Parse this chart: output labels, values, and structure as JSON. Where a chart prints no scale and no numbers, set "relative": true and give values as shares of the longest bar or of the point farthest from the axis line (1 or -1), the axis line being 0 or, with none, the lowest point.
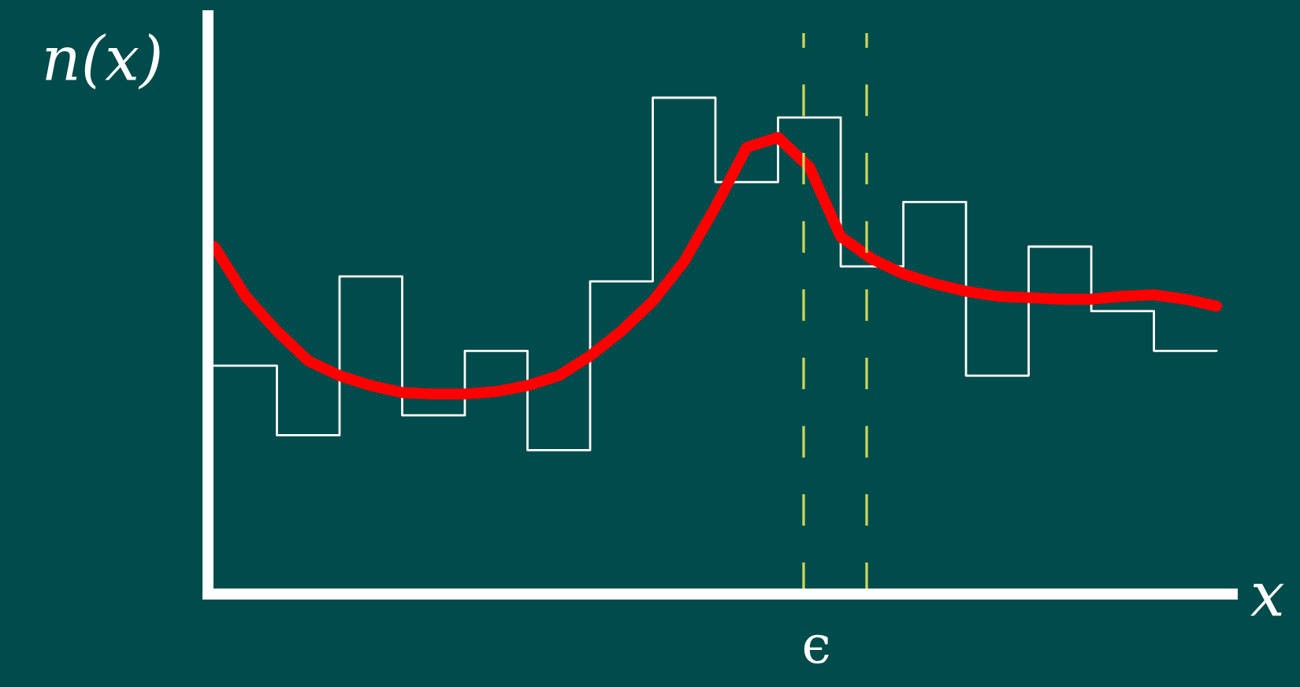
{
  "chart_data": {
    "type": "line",
    "relative": true,
    "xlabel": "x",
    "ylabel": "n(x)",
    "categories": [
      null,
      null,
      null,
      null,
      null,
      null,
      null,
      null,
      null,
      null,
      null,
      null,
      null,
      null,
      null,
      null,
      null,
      null,
      null,
      null,
      null,
      null,
      null,
      null,
      null,
      null,
      null,
      null,
      null,
      null,
      null,
      null,
      null
    ],
    "series": [
      {
        "type": "step",
        "color": "#ffffff",
        "values": [
          0.46,
          0.46,
          0.32,
          0.32,
          0.64,
          0.64,
          0.36,
          0.36,
          0.49,
          0.49,
          0.29,
          0.29,
          0.63,
          0.63,
          1.0,
          1.0,
          0.83,
          0.83,
          0.96,
          0.96,
          0.66,
          0.66,
          0.79,
          0.79,
          0.44,
          0.44,
          0.7,
          0.7,
          0.57,
          0.57,
          0.49,
          0.49,
          0.49
        ]
      },
      {
        "color": "#ff0000",
        "values": [
          0.7,
          0.6,
          0.53,
          0.47,
          0.44,
          0.42,
          0.406,
          0.403,
          0.403,
          0.408,
          0.42,
          0.44,
          0.48,
          0.53,
          0.59,
          0.67,
          0.78,
          0.9,
          0.92,
          0.86,
          0.72,
          0.675,
          0.645,
          0.625,
          0.61,
          0.6,
          0.597,
          0.594,
          0.594,
          0.6,
          0.603,
          0.594,
          0.58
        ]
      }
    ],
    "annotations": [
      "ϵ"
    ],
    "legend": false
  }
}
